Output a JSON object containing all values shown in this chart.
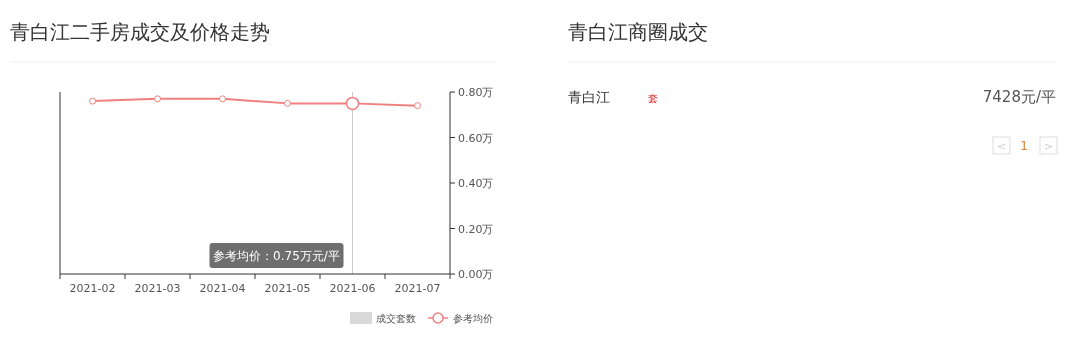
{
  "chart_data": [
    {
      "type": "line",
      "title": "青白江二手房成交及价格走势",
      "categories": [
        "2021-02",
        "2021-03",
        "2021-04",
        "2021-05",
        "2021-06",
        "2021-07"
      ],
      "series": [
        {
          "name": "成交套数",
          "type": "bar",
          "color": "#d9d9d9",
          "values": [
            null,
            null,
            null,
            null,
            null,
            null
          ]
        },
        {
          "name": "参考均价",
          "type": "line",
          "color": "#f08080",
          "values": [
            0.76,
            0.77,
            0.77,
            0.75,
            0.75,
            0.74
          ]
        }
      ],
      "ylim": [
        0,
        0.8
      ],
      "yticks": [
        {
          "value": 0,
          "label": "0.00万"
        },
        {
          "value": 0.2,
          "label": "0.20万"
        },
        {
          "value": 0.4,
          "label": "0.40万"
        },
        {
          "value": 0.6,
          "label": "0.60万"
        },
        {
          "value": 0.8,
          "label": "0.80万"
        }
      ],
      "annotations": [
        "参考均价：0.75万元/平"
      ],
      "ref_lines": [
        {
          "axis": "x",
          "value": "2021-06",
          "color": "#cccccc"
        }
      ],
      "marker": "circle",
      "legend": "bottom right"
    },
    {
      "type": "other",
      "title": "青白江商圈成交",
      "annotations": [
        "青白江",
        "套",
        "7428元/平",
        "<",
        "1",
        ">"
      ]
    }
  ]
}
